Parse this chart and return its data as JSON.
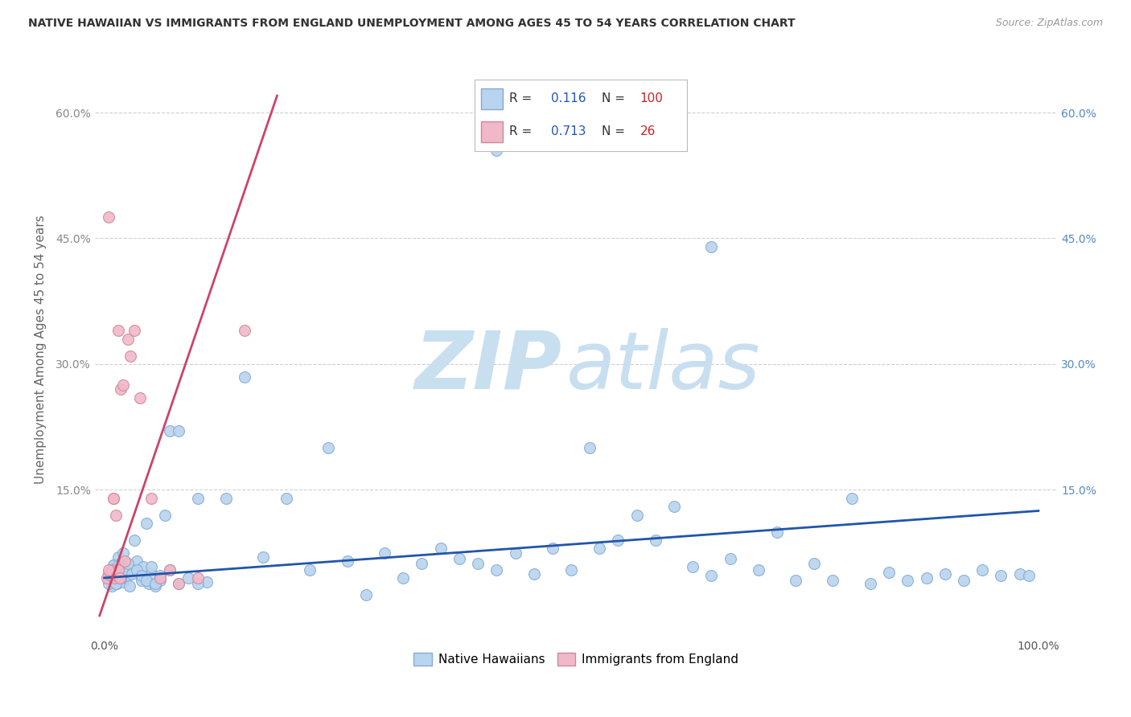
{
  "title": "NATIVE HAWAIIAN VS IMMIGRANTS FROM ENGLAND UNEMPLOYMENT AMONG AGES 45 TO 54 YEARS CORRELATION CHART",
  "source": "Source: ZipAtlas.com",
  "ylabel": "Unemployment Among Ages 45 to 54 years",
  "xlim": [
    -0.01,
    1.02
  ],
  "ylim": [
    -0.025,
    0.66
  ],
  "xtick_positions": [
    0.0,
    1.0
  ],
  "xticklabels": [
    "0.0%",
    "100.0%"
  ],
  "ytick_positions": [
    0.0,
    0.15,
    0.3,
    0.45,
    0.6
  ],
  "yticklabels": [
    "",
    "15.0%",
    "30.0%",
    "45.0%",
    "60.0%"
  ],
  "watermark_zip": "ZIP",
  "watermark_atlas": "atlas",
  "watermark_color": "#d8eaf8",
  "background_color": "#ffffff",
  "grid_color": "#d0d0d0",
  "blue_scatter_color": "#b8d4ee",
  "blue_scatter_edge": "#85aad4",
  "pink_scatter_color": "#f0b8c8",
  "pink_scatter_edge": "#d08898",
  "blue_line_color": "#2255aa",
  "pink_line_color": "#cc4466",
  "blue_trend_x": [
    0.0,
    1.0
  ],
  "blue_trend_y": [
    0.045,
    0.125
  ],
  "pink_trend_x": [
    -0.005,
    0.185
  ],
  "pink_trend_y": [
    0.0,
    0.62
  ],
  "native_hawaiian_x": [
    0.005,
    0.007,
    0.008,
    0.009,
    0.01,
    0.011,
    0.012,
    0.013,
    0.015,
    0.015,
    0.017,
    0.018,
    0.02,
    0.02,
    0.022,
    0.023,
    0.025,
    0.027,
    0.03,
    0.032,
    0.035,
    0.04,
    0.042,
    0.045,
    0.048,
    0.05,
    0.055,
    0.06,
    0.065,
    0.07,
    0.08,
    0.09,
    0.1,
    0.11,
    0.13,
    0.15,
    0.17,
    0.195,
    0.22,
    0.24,
    0.26,
    0.28,
    0.3,
    0.32,
    0.34,
    0.36,
    0.38,
    0.4,
    0.42,
    0.44,
    0.46,
    0.48,
    0.5,
    0.52,
    0.53,
    0.55,
    0.57,
    0.59,
    0.61,
    0.63,
    0.65,
    0.67,
    0.7,
    0.72,
    0.74,
    0.76,
    0.78,
    0.8,
    0.82,
    0.84,
    0.86,
    0.88,
    0.9,
    0.92,
    0.94,
    0.96,
    0.98,
    0.99,
    0.005,
    0.008,
    0.01,
    0.012,
    0.015,
    0.018,
    0.02,
    0.025,
    0.03,
    0.035,
    0.04,
    0.045,
    0.05,
    0.055,
    0.06,
    0.07,
    0.08,
    0.1,
    0.42,
    0.65
  ],
  "native_hawaiian_y": [
    0.05,
    0.04,
    0.035,
    0.055,
    0.06,
    0.042,
    0.05,
    0.038,
    0.045,
    0.07,
    0.055,
    0.062,
    0.04,
    0.075,
    0.05,
    0.045,
    0.048,
    0.035,
    0.055,
    0.09,
    0.065,
    0.042,
    0.058,
    0.11,
    0.038,
    0.05,
    0.035,
    0.042,
    0.12,
    0.22,
    0.22,
    0.045,
    0.14,
    0.04,
    0.14,
    0.285,
    0.07,
    0.14,
    0.055,
    0.2,
    0.065,
    0.025,
    0.075,
    0.045,
    0.062,
    0.08,
    0.068,
    0.062,
    0.055,
    0.075,
    0.05,
    0.08,
    0.055,
    0.2,
    0.08,
    0.09,
    0.12,
    0.09,
    0.13,
    0.058,
    0.44,
    0.068,
    0.055,
    0.1,
    0.042,
    0.062,
    0.042,
    0.14,
    0.038,
    0.052,
    0.042,
    0.045,
    0.05,
    0.042,
    0.055,
    0.048,
    0.05,
    0.048,
    0.038,
    0.048,
    0.06,
    0.038,
    0.06,
    0.045,
    0.055,
    0.062,
    0.05,
    0.055,
    0.048,
    0.042,
    0.058,
    0.038,
    0.048,
    0.055,
    0.038,
    0.038,
    0.555,
    0.048
  ],
  "england_x": [
    0.003,
    0.005,
    0.007,
    0.008,
    0.01,
    0.011,
    0.012,
    0.013,
    0.015,
    0.015,
    0.017,
    0.018,
    0.02,
    0.022,
    0.025,
    0.028,
    0.032,
    0.038,
    0.05,
    0.06,
    0.07,
    0.08,
    0.1,
    0.15,
    0.005,
    0.01
  ],
  "england_y": [
    0.045,
    0.475,
    0.048,
    0.055,
    0.14,
    0.045,
    0.12,
    0.048,
    0.34,
    0.055,
    0.045,
    0.27,
    0.275,
    0.065,
    0.33,
    0.31,
    0.34,
    0.26,
    0.14,
    0.045,
    0.055,
    0.038,
    0.045,
    0.34,
    0.055,
    0.14
  ]
}
